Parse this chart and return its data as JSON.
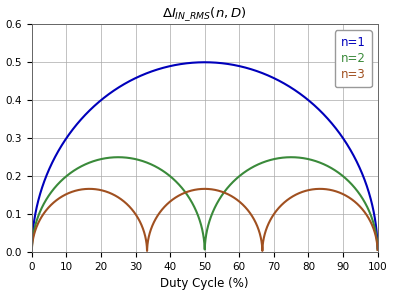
{
  "xlabel": "Duty Cycle (%)",
  "xlim": [
    0,
    100
  ],
  "ylim": [
    0.0,
    0.6
  ],
  "yticks": [
    0.0,
    0.1,
    0.2,
    0.3,
    0.4,
    0.5,
    0.6
  ],
  "xticks": [
    0,
    10,
    20,
    30,
    40,
    50,
    60,
    70,
    80,
    90,
    100
  ],
  "colors": {
    "n1": "#0000bb",
    "n2": "#3a8a3a",
    "n3": "#a05020"
  },
  "legend_labels": [
    "n=1",
    "n=2",
    "n=3"
  ],
  "background_color": "#ffffff",
  "grid_color": "#aaaaaa"
}
